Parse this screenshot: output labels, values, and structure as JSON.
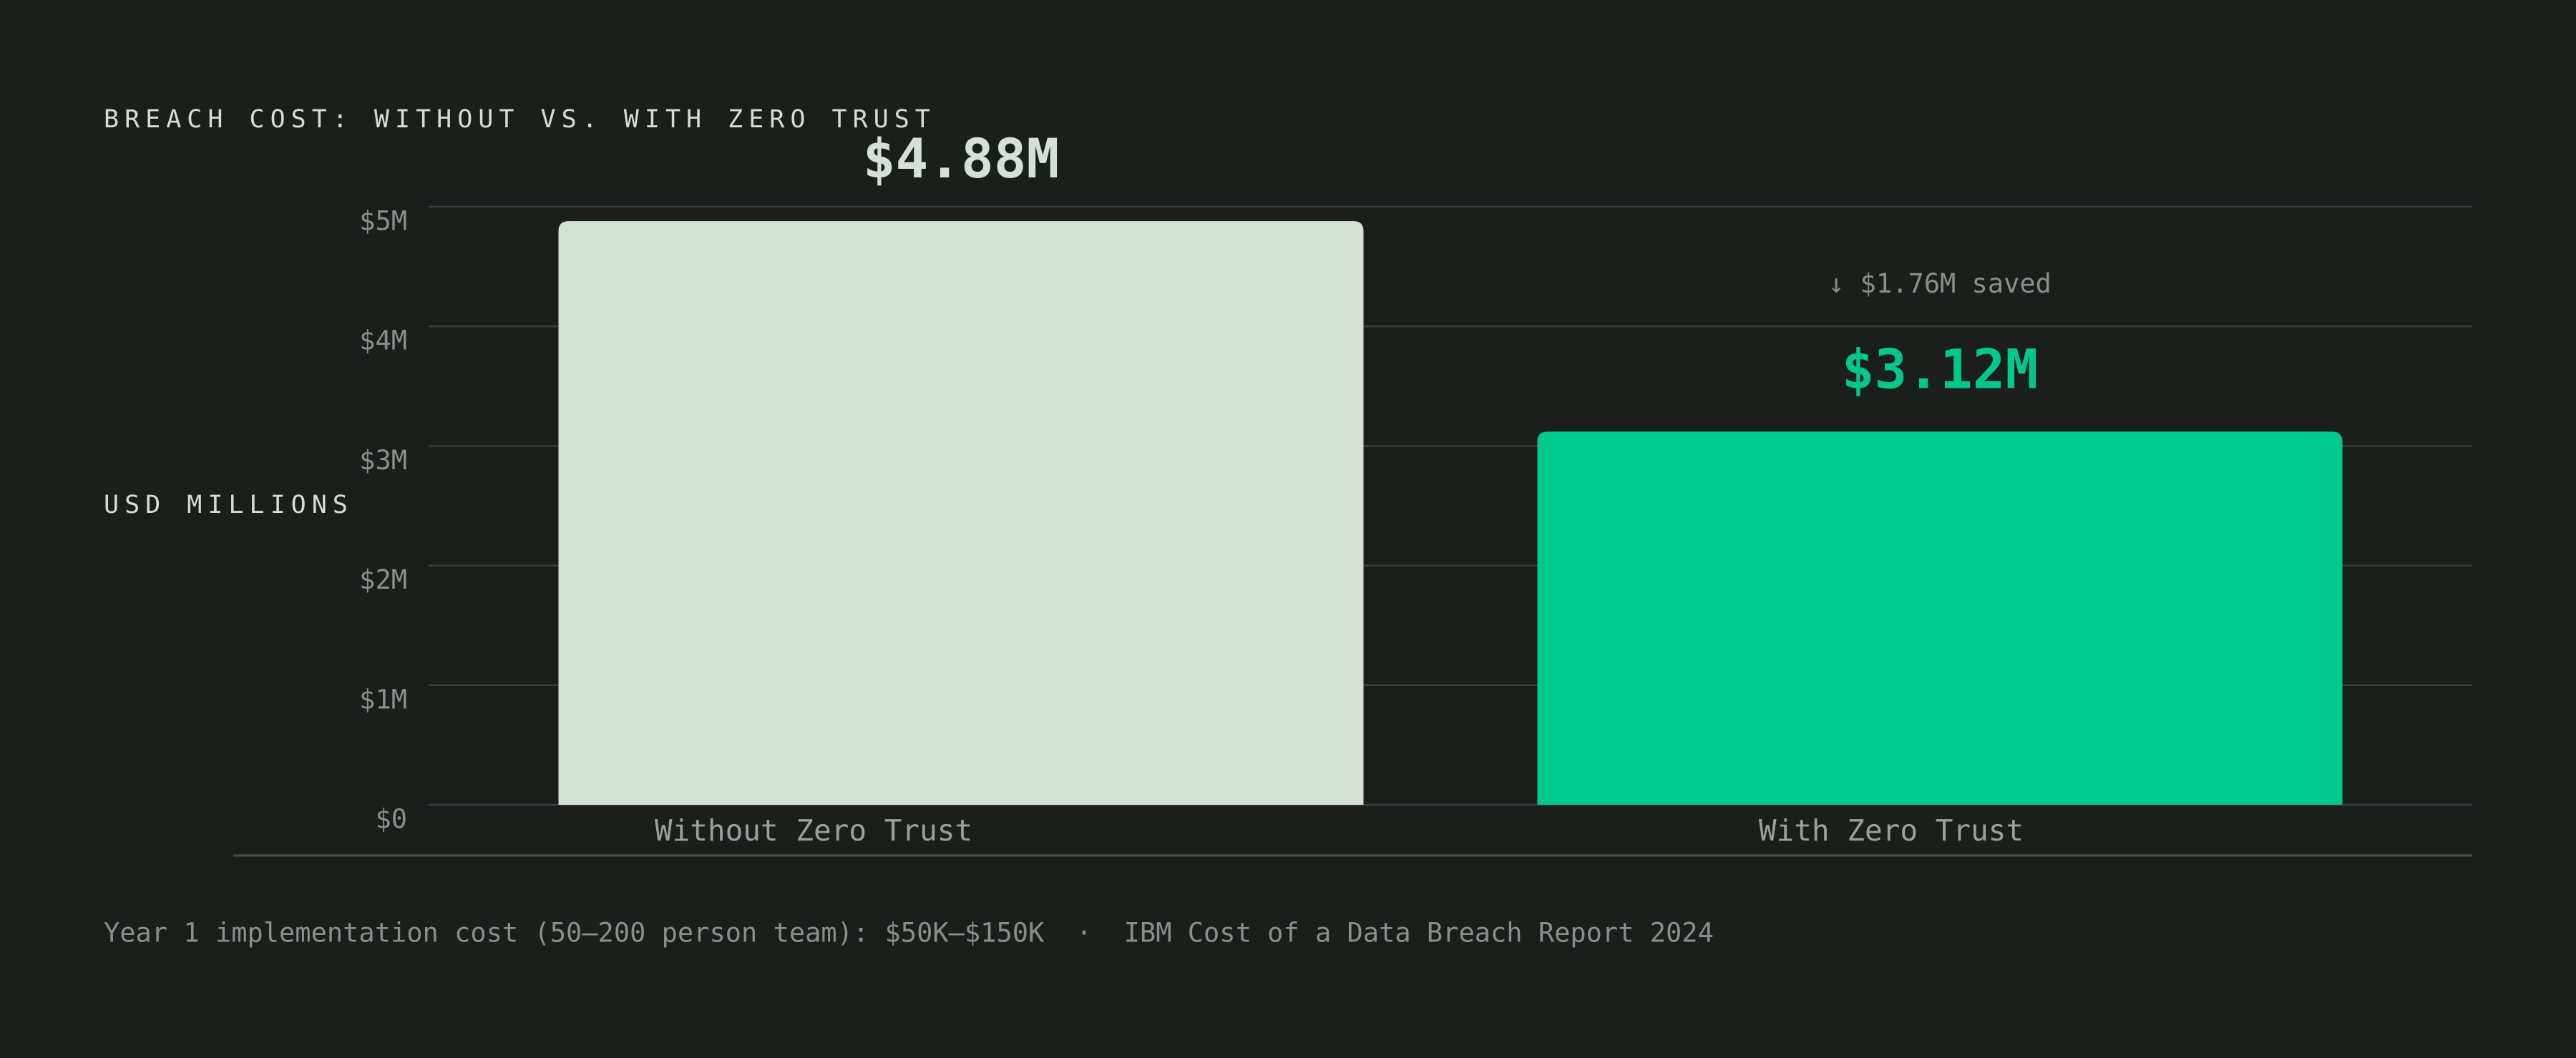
{
  "chart_data": {
    "type": "bar",
    "title": "BREACH COST: WITHOUT VS. WITH ZERO TRUST",
    "y_label": "USD MILLIONS",
    "categories": [
      "Without Zero Trust",
      "With Zero Trust"
    ],
    "values": [
      4.88,
      3.12
    ],
    "value_labels": [
      "$4.88M",
      "$3.12M"
    ],
    "colors": [
      "#d5e0d6",
      "#00c78a"
    ],
    "annotation": "↓ $1.76M saved",
    "annotation_color": "#e8c14f",
    "ylim": [
      0,
      5.13
    ],
    "yticks": [
      {
        "value": 0,
        "label": "$0"
      },
      {
        "value": 1,
        "label": "$1M"
      },
      {
        "value": 2,
        "label": "$2M"
      },
      {
        "value": 3,
        "label": "$3M"
      },
      {
        "value": 4,
        "label": "$4M"
      },
      {
        "value": 5,
        "label": "$5M"
      }
    ],
    "grid": true,
    "footnote": "Year 1 implementation cost (50–200 person team): $50K–$150K  ·  IBM Cost of a Data Breach Report 2024"
  }
}
